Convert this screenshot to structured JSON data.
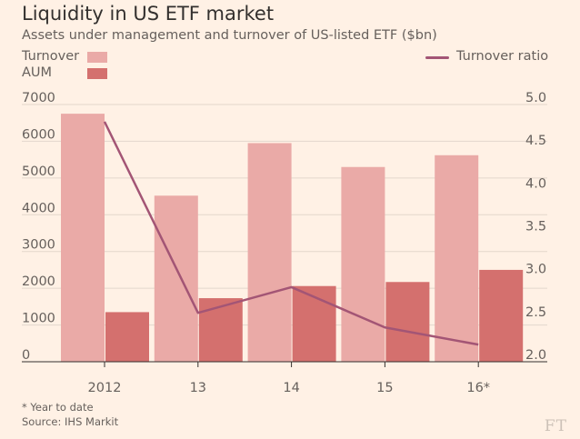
{
  "title": "Liquidity in US ETF market",
  "subtitle": "Assets under management and turnover of US-listed ETF ($bn)",
  "legend": {
    "turnover": "Turnover",
    "aum": "AUM",
    "ratio": "Turnover ratio"
  },
  "colors": {
    "background": "#fff1e5",
    "turnover": "#eaaaa7",
    "aum": "#d4706e",
    "ratio": "#a35575",
    "grid": "#e3d7cc",
    "axis": "#33302e"
  },
  "footnote": "* Year to date",
  "source": "Source: IHS Markit",
  "logo": "FT",
  "chart_data": {
    "type": "bar",
    "title": "Liquidity in US ETF market",
    "categories": [
      "2012",
      "13",
      "14",
      "15",
      "16*"
    ],
    "series": [
      {
        "name": "Turnover",
        "axis": "left",
        "values": [
          6750,
          4520,
          5950,
          5300,
          5620
        ]
      },
      {
        "name": "AUM",
        "axis": "left",
        "values": [
          1350,
          1730,
          2060,
          2170,
          2500
        ]
      },
      {
        "name": "Turnover ratio",
        "axis": "right",
        "type": "line",
        "values": [
          4.8,
          2.57,
          2.87,
          2.4,
          2.2
        ]
      }
    ],
    "ylim_left": [
      0,
      7000
    ],
    "yticks_left": [
      0,
      1000,
      2000,
      3000,
      4000,
      5000,
      6000,
      7000
    ],
    "ytick_labels_left": [
      "0",
      "1000",
      "2000",
      "3000",
      "4000",
      "5000",
      "6000",
      "7000"
    ],
    "ylim_right": [
      2.0,
      5.0
    ],
    "yticks_right": [
      2.0,
      2.5,
      3.0,
      3.5,
      4.0,
      4.5,
      5.0
    ],
    "ytick_labels_right": [
      "2.0",
      "2.5",
      "3.0",
      "3.5",
      "4.0",
      "4.5",
      "5.0"
    ],
    "grid": true,
    "legend_position": "top"
  }
}
